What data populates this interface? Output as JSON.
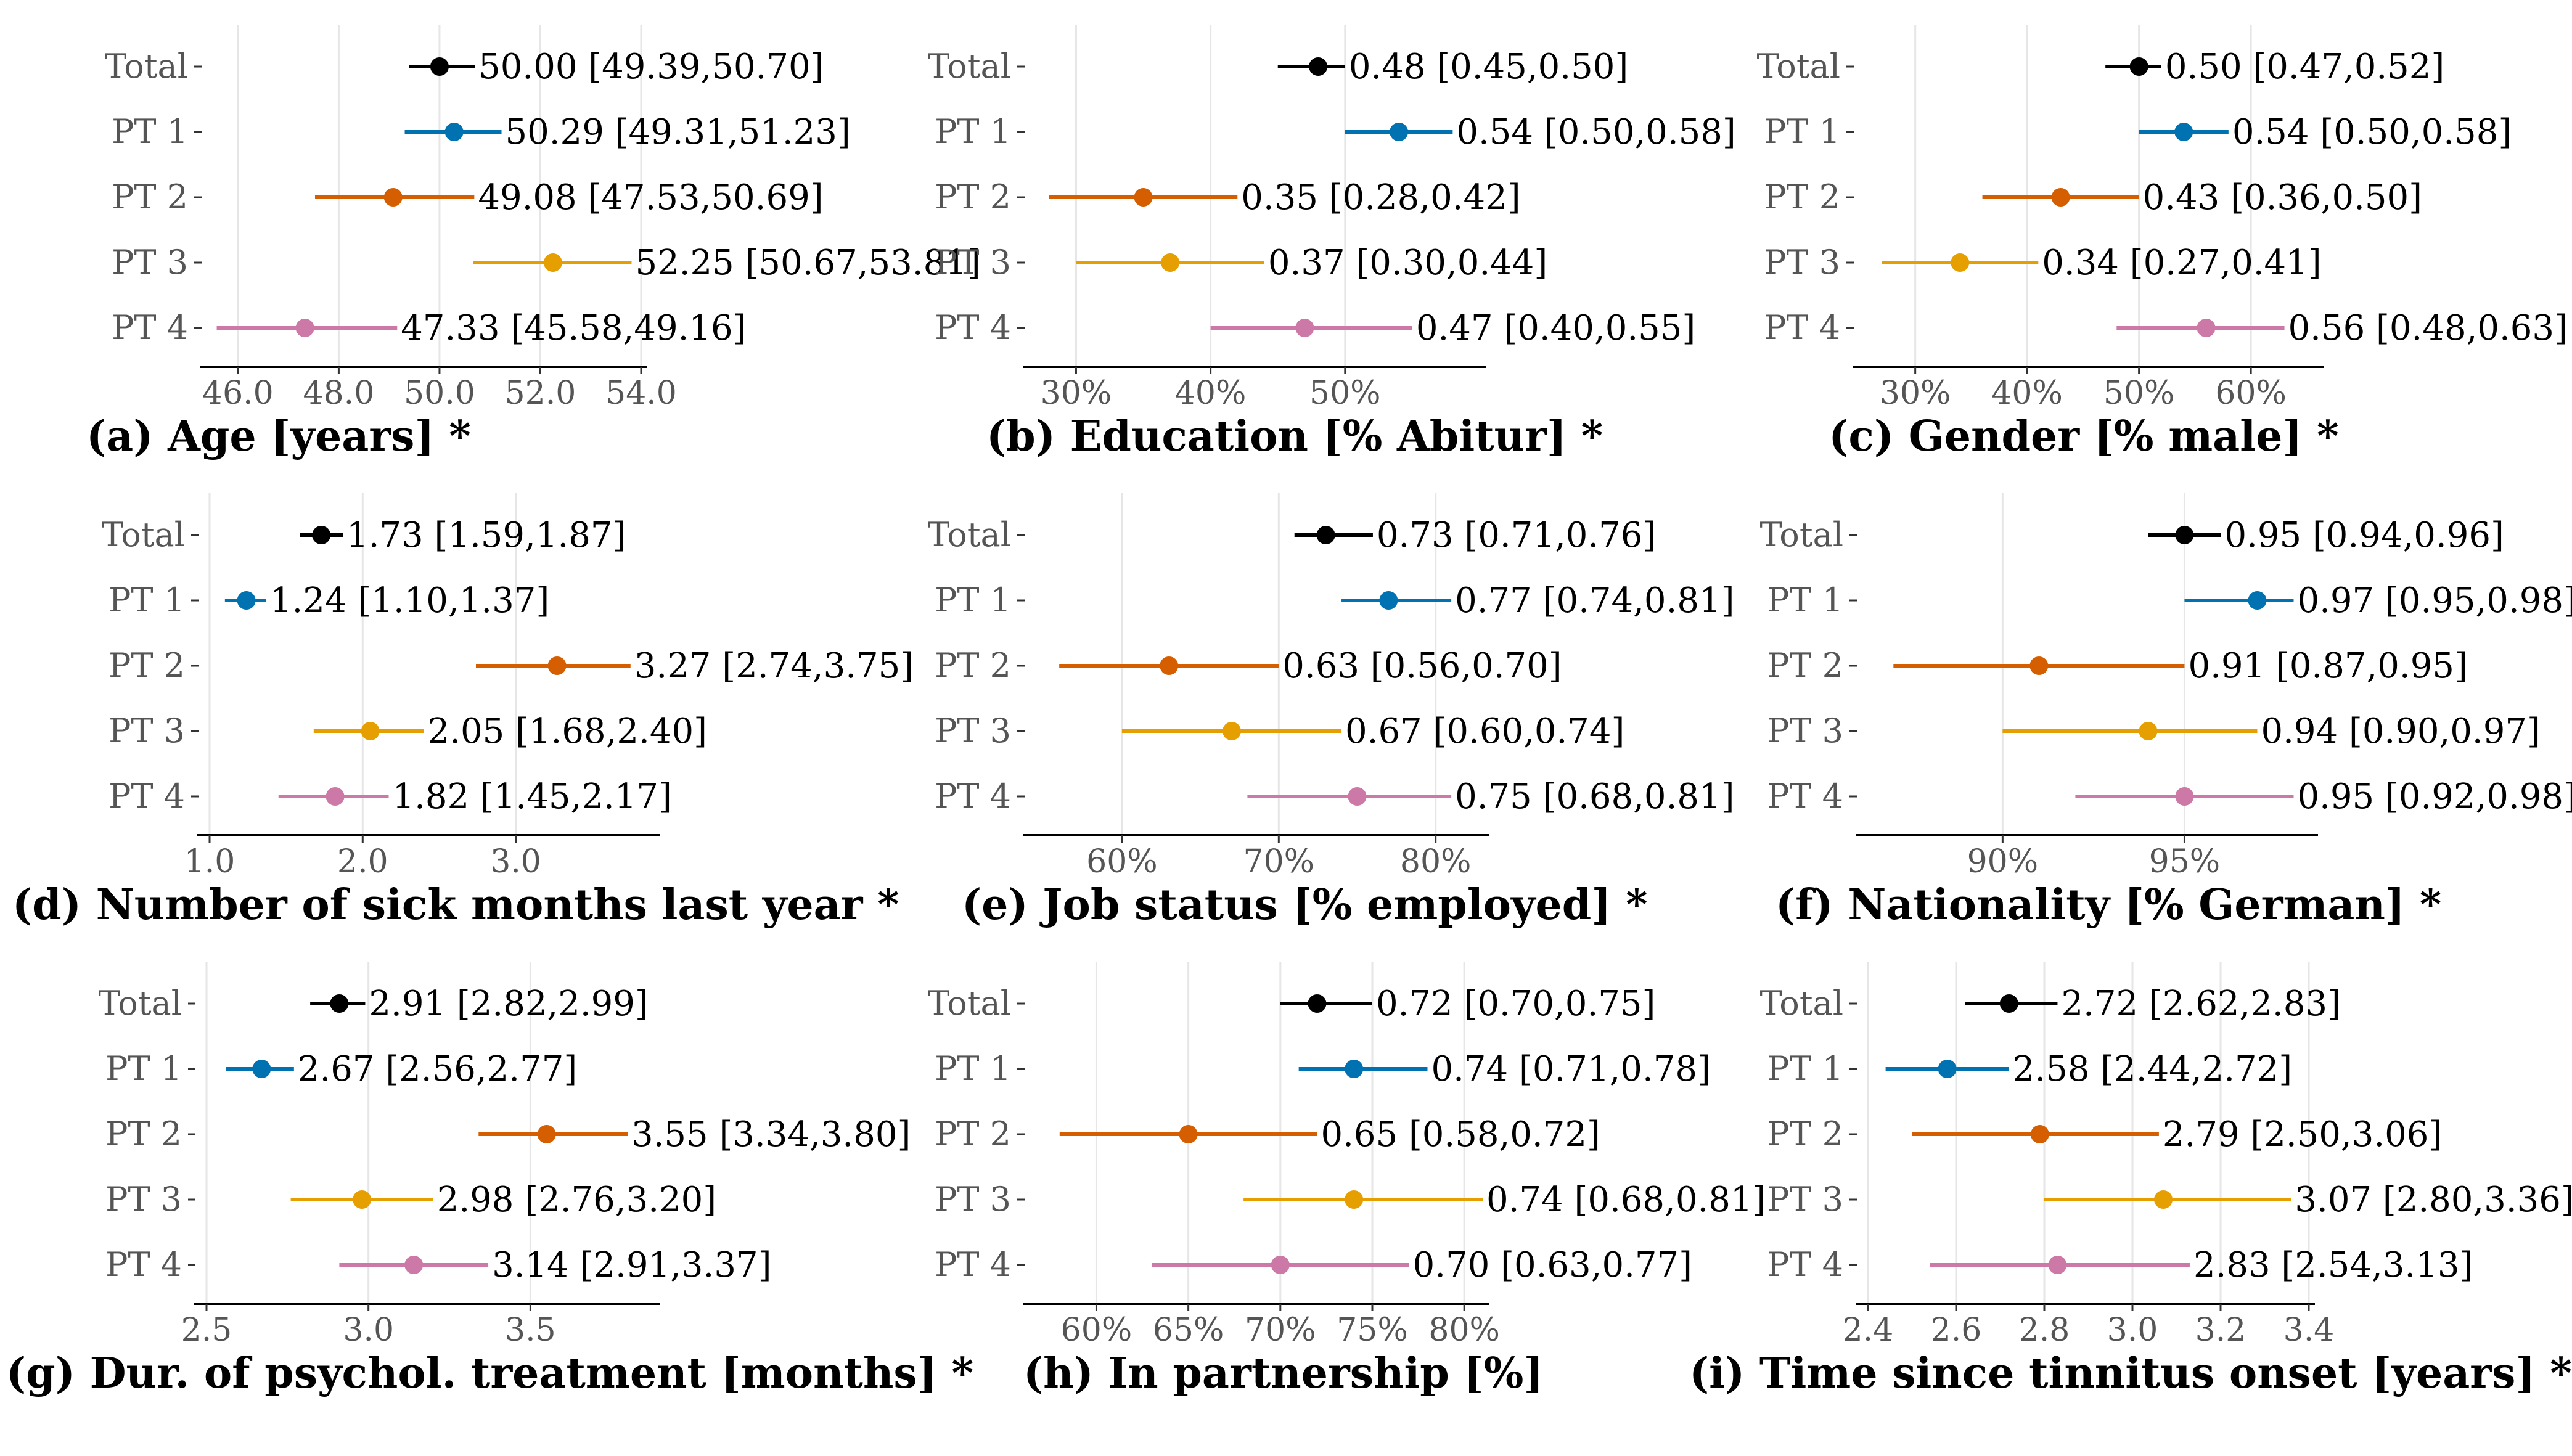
{
  "categories": [
    "Total",
    "PT 1",
    "PT 2",
    "PT 3",
    "PT 4"
  ],
  "colors": {
    "Total": "#000000",
    "PT 1": "#0072B2",
    "PT 2": "#D55E00",
    "PT 3": "#E69F00",
    "PT 4": "#CC79A7"
  },
  "chart_data": [
    {
      "type": "scatter",
      "title": "(a) Age [years] *",
      "x_ticks": [
        46.0,
        48.0,
        50.0,
        52.0,
        54.0
      ],
      "x_tick_labels": [
        "46.0",
        "48.0",
        "50.0",
        "52.0",
        "54.0"
      ],
      "xlim": [
        45.5,
        54.0
      ],
      "points": [
        {
          "category": "Total",
          "value": 50.0,
          "lower": 49.39,
          "upper": 50.7,
          "label": "50.00 [49.39,50.70]"
        },
        {
          "category": "PT 1",
          "value": 50.29,
          "lower": 49.31,
          "upper": 51.23,
          "label": "50.29 [49.31,51.23]"
        },
        {
          "category": "PT 2",
          "value": 49.08,
          "lower": 47.53,
          "upper": 50.69,
          "label": "49.08 [47.53,50.69]"
        },
        {
          "category": "PT 3",
          "value": 52.25,
          "lower": 50.67,
          "upper": 53.81,
          "label": "52.25 [50.67,53.81]"
        },
        {
          "category": "PT 4",
          "value": 47.33,
          "lower": 45.58,
          "upper": 49.16,
          "label": "47.33 [45.58,49.16]"
        }
      ]
    },
    {
      "type": "scatter",
      "title": "(b) Education [% Abitur] *",
      "x_ticks": [
        0.3,
        0.4,
        0.5
      ],
      "x_tick_labels": [
        "30%",
        "40%",
        "50%"
      ],
      "xlim": [
        0.27,
        0.6
      ],
      "points": [
        {
          "category": "Total",
          "value": 0.48,
          "lower": 0.45,
          "upper": 0.5,
          "label": "0.48 [0.45,0.50]"
        },
        {
          "category": "PT 1",
          "value": 0.54,
          "lower": 0.5,
          "upper": 0.58,
          "label": "0.54 [0.50,0.58]"
        },
        {
          "category": "PT 2",
          "value": 0.35,
          "lower": 0.28,
          "upper": 0.42,
          "label": "0.35 [0.28,0.42]"
        },
        {
          "category": "PT 3",
          "value": 0.37,
          "lower": 0.3,
          "upper": 0.44,
          "label": "0.37 [0.30,0.44]"
        },
        {
          "category": "PT 4",
          "value": 0.47,
          "lower": 0.4,
          "upper": 0.55,
          "label": "0.47 [0.40,0.55]"
        }
      ]
    },
    {
      "type": "scatter",
      "title": "(c) Gender [% male] *",
      "x_ticks": [
        0.3,
        0.4,
        0.5,
        0.6
      ],
      "x_tick_labels": [
        "30%",
        "40%",
        "50%",
        "60%"
      ],
      "xlim": [
        0.255,
        0.66
      ],
      "points": [
        {
          "category": "Total",
          "value": 0.5,
          "lower": 0.47,
          "upper": 0.52,
          "label": "0.50 [0.47,0.52]"
        },
        {
          "category": "PT 1",
          "value": 0.54,
          "lower": 0.5,
          "upper": 0.58,
          "label": "0.54 [0.50,0.58]"
        },
        {
          "category": "PT 2",
          "value": 0.43,
          "lower": 0.36,
          "upper": 0.5,
          "label": "0.43 [0.36,0.50]"
        },
        {
          "category": "PT 3",
          "value": 0.34,
          "lower": 0.27,
          "upper": 0.41,
          "label": "0.34 [0.27,0.41]"
        },
        {
          "category": "PT 4",
          "value": 0.56,
          "lower": 0.48,
          "upper": 0.63,
          "label": "0.56 [0.48,0.63]"
        }
      ]
    },
    {
      "type": "scatter",
      "title": "(d) Number of sick months last year *",
      "x_ticks": [
        1.0,
        2.0,
        3.0
      ],
      "x_tick_labels": [
        "1.0",
        "2.0",
        "3.0"
      ],
      "xlim": [
        1.0,
        3.9
      ],
      "points": [
        {
          "category": "Total",
          "value": 1.73,
          "lower": 1.59,
          "upper": 1.87,
          "label": "1.73 [1.59,1.87]"
        },
        {
          "category": "PT 1",
          "value": 1.24,
          "lower": 1.1,
          "upper": 1.37,
          "label": "1.24 [1.10,1.37]"
        },
        {
          "category": "PT 2",
          "value": 3.27,
          "lower": 2.74,
          "upper": 3.75,
          "label": "3.27 [2.74,3.75]"
        },
        {
          "category": "PT 3",
          "value": 2.05,
          "lower": 1.68,
          "upper": 2.4,
          "label": "2.05 [1.68,2.40]"
        },
        {
          "category": "PT 4",
          "value": 1.82,
          "lower": 1.45,
          "upper": 2.17,
          "label": "1.82 [1.45,2.17]"
        }
      ]
    },
    {
      "type": "scatter",
      "title": "(e) Job status [% employed] *",
      "x_ticks": [
        0.6,
        0.7,
        0.8
      ],
      "x_tick_labels": [
        "60%",
        "70%",
        "80%"
      ],
      "xlim": [
        0.545,
        0.83
      ],
      "points": [
        {
          "category": "Total",
          "value": 0.73,
          "lower": 0.71,
          "upper": 0.76,
          "label": "0.73 [0.71,0.76]"
        },
        {
          "category": "PT 1",
          "value": 0.77,
          "lower": 0.74,
          "upper": 0.81,
          "label": "0.77 [0.74,0.81]"
        },
        {
          "category": "PT 2",
          "value": 0.63,
          "lower": 0.56,
          "upper": 0.7,
          "label": "0.63 [0.56,0.70]"
        },
        {
          "category": "PT 3",
          "value": 0.67,
          "lower": 0.6,
          "upper": 0.74,
          "label": "0.67 [0.60,0.74]"
        },
        {
          "category": "PT 4",
          "value": 0.75,
          "lower": 0.68,
          "upper": 0.81,
          "label": "0.75 [0.68,0.81]"
        }
      ]
    },
    {
      "type": "scatter",
      "title": "(f) Nationality [% German] *",
      "x_ticks": [
        0.9,
        0.95
      ],
      "x_tick_labels": [
        "90%",
        "95%"
      ],
      "xlim": [
        0.863,
        0.985
      ],
      "points": [
        {
          "category": "Total",
          "value": 0.95,
          "lower": 0.94,
          "upper": 0.96,
          "label": "0.95 [0.94,0.96]"
        },
        {
          "category": "PT 1",
          "value": 0.97,
          "lower": 0.95,
          "upper": 0.98,
          "label": "0.97 [0.95,0.98]"
        },
        {
          "category": "PT 2",
          "value": 0.91,
          "lower": 0.87,
          "upper": 0.95,
          "label": "0.91 [0.87,0.95]"
        },
        {
          "category": "PT 3",
          "value": 0.94,
          "lower": 0.9,
          "upper": 0.97,
          "label": "0.94 [0.90,0.97]"
        },
        {
          "category": "PT 4",
          "value": 0.95,
          "lower": 0.92,
          "upper": 0.98,
          "label": "0.95 [0.92,0.98]"
        }
      ]
    },
    {
      "type": "scatter",
      "title": "(g) Dur. of psychol. treatment [months] *",
      "x_ticks": [
        2.5,
        3.0,
        3.5
      ],
      "x_tick_labels": [
        "2.5",
        "3.0",
        "3.5"
      ],
      "xlim": [
        2.5,
        3.88
      ],
      "points": [
        {
          "category": "Total",
          "value": 2.91,
          "lower": 2.82,
          "upper": 2.99,
          "label": "2.91 [2.82,2.99]"
        },
        {
          "category": "PT 1",
          "value": 2.67,
          "lower": 2.56,
          "upper": 2.77,
          "label": "2.67 [2.56,2.77]"
        },
        {
          "category": "PT 2",
          "value": 3.55,
          "lower": 3.34,
          "upper": 3.8,
          "label": "3.55 [3.34,3.80]"
        },
        {
          "category": "PT 3",
          "value": 2.98,
          "lower": 2.76,
          "upper": 3.2,
          "label": "2.98 [2.76,3.20]"
        },
        {
          "category": "PT 4",
          "value": 3.14,
          "lower": 2.91,
          "upper": 3.37,
          "label": "3.14 [2.91,3.37]"
        }
      ]
    },
    {
      "type": "scatter",
      "title": "(h) In partnership [%]",
      "x_ticks": [
        0.6,
        0.65,
        0.7,
        0.75,
        0.8
      ],
      "x_tick_labels": [
        "60%",
        "65%",
        "70%",
        "75%",
        "80%"
      ],
      "xlim": [
        0.567,
        0.81
      ],
      "points": [
        {
          "category": "Total",
          "value": 0.72,
          "lower": 0.7,
          "upper": 0.75,
          "label": "0.72 [0.70,0.75]"
        },
        {
          "category": "PT 1",
          "value": 0.74,
          "lower": 0.71,
          "upper": 0.78,
          "label": "0.74 [0.71,0.78]"
        },
        {
          "category": "PT 2",
          "value": 0.65,
          "lower": 0.58,
          "upper": 0.72,
          "label": "0.65 [0.58,0.72]"
        },
        {
          "category": "PT 3",
          "value": 0.74,
          "lower": 0.68,
          "upper": 0.81,
          "label": "0.74 [0.68,0.81]"
        },
        {
          "category": "PT 4",
          "value": 0.7,
          "lower": 0.63,
          "upper": 0.77,
          "label": "0.70 [0.63,0.77]"
        }
      ]
    },
    {
      "type": "scatter",
      "title": "(i) Time since tinnitus onset [years] *",
      "x_ticks": [
        2.4,
        2.6,
        2.8,
        3.0,
        3.2,
        3.4
      ],
      "x_tick_labels": [
        "2.4",
        "2.6",
        "2.8",
        "3.0",
        "3.2",
        "3.4"
      ],
      "xlim": [
        2.4,
        3.4
      ],
      "points": [
        {
          "category": "Total",
          "value": 2.72,
          "lower": 2.62,
          "upper": 2.83,
          "label": "2.72 [2.62,2.83]"
        },
        {
          "category": "PT 1",
          "value": 2.58,
          "lower": 2.44,
          "upper": 2.72,
          "label": "2.58 [2.44,2.72]"
        },
        {
          "category": "PT 2",
          "value": 2.79,
          "lower": 2.5,
          "upper": 3.06,
          "label": "2.79 [2.50,3.06]"
        },
        {
          "category": "PT 3",
          "value": 3.07,
          "lower": 2.8,
          "upper": 3.36,
          "label": "3.07 [2.80,3.36]"
        },
        {
          "category": "PT 4",
          "value": 2.83,
          "lower": 2.54,
          "upper": 3.13,
          "label": "2.83 [2.54,3.13]"
        }
      ]
    }
  ]
}
